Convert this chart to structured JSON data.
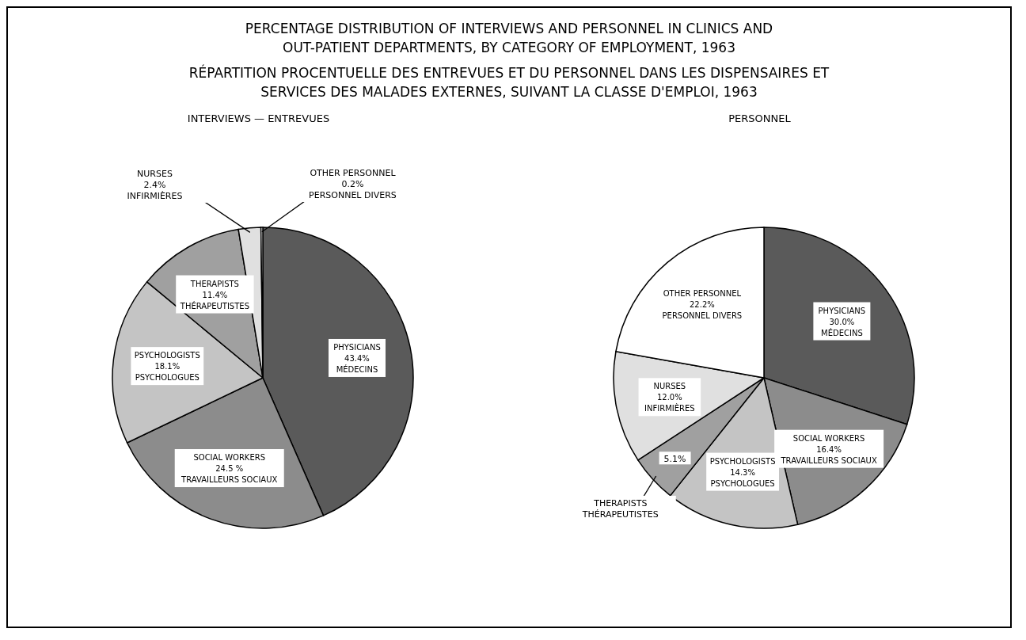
{
  "chart_data": [
    {
      "type": "other",
      "title": "PERCENTAGE DISTRIBUTION OF INTERVIEWS AND PERSONNEL IN CLINICS AND\nOUT-PATIENT DEPARTMENTS, BY CATEGORY OF EMPLOYMENT, 1963",
      "subtitle": "RÉPARTITION PROCENTUELLE DES ENTREVUES ET DU PERSONNEL DANS LES DISPENSAIRES ET\nSERVICES DES MALADES EXTERNES, SUIVANT LA CLASSE D'EMPLOI, 1963"
    },
    {
      "type": "pie",
      "title": "INTERVIEWS — ENTREVUES",
      "categories": [
        "PHYSICIANS\nMÉDECINS",
        "SOCIAL WORKERS\nTRAVAILLEURS SOCIAUX",
        "PSYCHOLOGISTS\nPSYCHOLOGUES",
        "THERAPISTS\nTHÉRAPEUTISTES",
        "NURSES\nINFIRMIÈRES",
        "OTHER PERSONNEL\nPERSONNEL DIVERS"
      ],
      "values": [
        43.4,
        24.5,
        18.1,
        11.4,
        2.4,
        0.2
      ],
      "value_labels": [
        "43.4%",
        "24.5 %",
        "18.1%",
        "11.4%",
        "2.4%",
        "0.2%"
      ],
      "colors": [
        "#5a5a5a",
        "#8c8c8c",
        "#c4c4c4",
        "#a0a0a0",
        "#e0e0e0",
        "#ffffff"
      ]
    },
    {
      "type": "pie",
      "title": "PERSONNEL",
      "categories": [
        "PHYSICIANS\nMÉDECINS",
        "SOCIAL WORKERS\nTRAVAILLEURS SOCIAUX",
        "PSYCHOLOGISTS\nPSYCHOLOGUES",
        "THERAPISTS\nTHÉRAPEUTISTES",
        "NURSES\nINFIRMIÈRES",
        "OTHER PERSONNEL\nPERSONNEL DIVERS"
      ],
      "values": [
        30.0,
        16.4,
        14.3,
        5.1,
        12.0,
        22.2
      ],
      "value_labels": [
        "30.0%",
        "16.4%",
        "14.3%",
        "5.1%",
        "12.0%",
        "22.2%"
      ],
      "colors": [
        "#5a5a5a",
        "#8c8c8c",
        "#c4c4c4",
        "#a0a0a0",
        "#e0e0e0",
        "#ffffff"
      ]
    }
  ]
}
